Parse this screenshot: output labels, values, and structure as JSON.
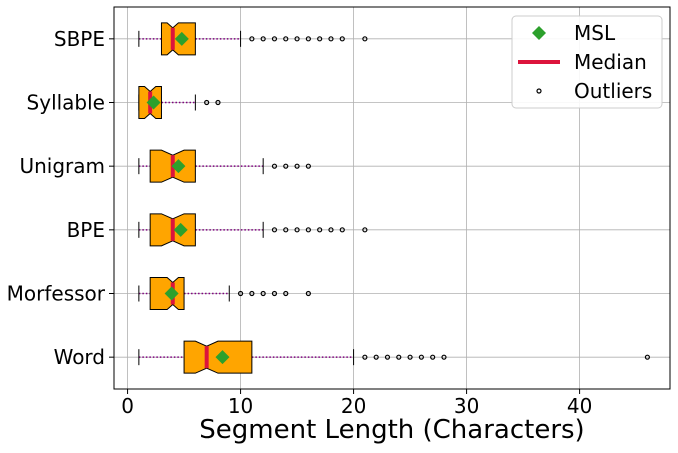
{
  "chart_data": {
    "type": "boxplot",
    "orientation": "horizontal",
    "notched": true,
    "xlabel": "Segment Length (Characters)",
    "ylabel": "",
    "xlim": [
      -1.2,
      48
    ],
    "xticks": [
      "0",
      "10",
      "20",
      "30",
      "40"
    ],
    "grid": true,
    "legend": {
      "placement": "top-right",
      "entries": [
        {
          "label": "MSL",
          "marker": "diamond",
          "color": "#2ca02c"
        },
        {
          "label": "Median",
          "marker": "line",
          "color": "#dc143c"
        },
        {
          "label": "Outliers",
          "marker": "circle-open",
          "color": "#000000"
        }
      ]
    },
    "colors": {
      "box": "#ffa500",
      "median": "#dc143c",
      "mean": "#2ca02c",
      "whisker": "#800080"
    },
    "categories": [
      "SBPE",
      "Syllable",
      "Unigram",
      "BPE",
      "Morfessor",
      "Word"
    ],
    "boxes": [
      {
        "name": "SBPE",
        "whislo": 1,
        "q1": 3,
        "med": 4,
        "q3": 6,
        "whishi": 10,
        "mean": 4.8,
        "outliers": [
          11,
          12,
          13,
          14,
          15,
          16,
          17,
          18,
          19,
          21
        ]
      },
      {
        "name": "Syllable",
        "whislo": 1,
        "q1": 1,
        "med": 2,
        "q3": 3,
        "whishi": 6,
        "mean": 2.3,
        "outliers": [
          7,
          8
        ]
      },
      {
        "name": "Unigram",
        "whislo": 1,
        "q1": 2,
        "med": 4,
        "q3": 6,
        "whishi": 12,
        "mean": 4.5,
        "outliers": [
          13,
          14,
          15,
          16
        ]
      },
      {
        "name": "BPE",
        "whislo": 1,
        "q1": 2,
        "med": 4,
        "q3": 6,
        "whishi": 12,
        "mean": 4.7,
        "outliers": [
          13,
          14,
          15,
          16,
          17,
          18,
          19,
          21
        ]
      },
      {
        "name": "Morfessor",
        "whislo": 1,
        "q1": 2,
        "med": 4,
        "q3": 5,
        "whishi": 9,
        "mean": 3.9,
        "outliers": [
          10,
          11,
          12,
          13,
          14,
          16
        ]
      },
      {
        "name": "Word",
        "whislo": 1,
        "q1": 5,
        "med": 7,
        "q3": 11,
        "whishi": 20,
        "mean": 8.4,
        "outliers": [
          21,
          22,
          23,
          24,
          25,
          26,
          27,
          28,
          46
        ]
      }
    ]
  }
}
